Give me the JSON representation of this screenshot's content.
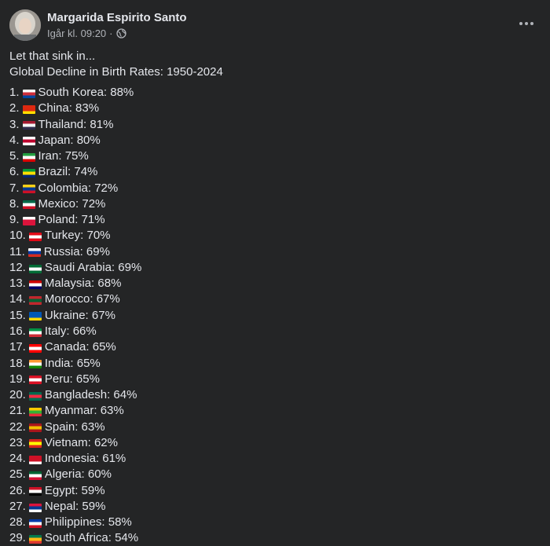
{
  "post": {
    "author": "Margarida Espirito Santo",
    "timestamp": "Igår kl. 09:20",
    "separator": "·",
    "privacy_icon": "globe-icon",
    "more_icon": "more-options-icon",
    "lines": [
      "Let that sink in...",
      "Global Decline in Birth Rates: 1950-2024"
    ]
  },
  "countries": [
    {
      "num": "1.",
      "text": "South Korea: 88%",
      "flag": [
        "#ffffff",
        "#cd2e3a",
        "#0047a0"
      ]
    },
    {
      "num": "2.",
      "text": "China: 83%",
      "flag": [
        "#de2910",
        "#de2910",
        "#ffde00"
      ]
    },
    {
      "num": "3.",
      "text": "Thailand: 81%",
      "flag": [
        "#a51931",
        "#f4f5f8",
        "#2d2a4a"
      ]
    },
    {
      "num": "4.",
      "text": "Japan: 80%",
      "flag": [
        "#ffffff",
        "#bc002d",
        "#ffffff"
      ]
    },
    {
      "num": "5.",
      "text": "Iran: 75%",
      "flag": [
        "#239f40",
        "#ffffff",
        "#da0000"
      ]
    },
    {
      "num": "6.",
      "text": "Brazil: 74%",
      "flag": [
        "#009c3b",
        "#ffdf00",
        "#002776"
      ]
    },
    {
      "num": "7.",
      "text": "Colombia: 72%",
      "flag": [
        "#fcd116",
        "#003893",
        "#ce1126"
      ]
    },
    {
      "num": "8.",
      "text": "Mexico: 72%",
      "flag": [
        "#006847",
        "#ffffff",
        "#ce1126"
      ]
    },
    {
      "num": "9.",
      "text": "Poland: 71%",
      "flag": [
        "#ffffff",
        "#dc143c",
        "#dc143c"
      ]
    },
    {
      "num": "10.",
      "text": "Turkey: 70%",
      "flag": [
        "#e30a17",
        "#ffffff",
        "#e30a17"
      ]
    },
    {
      "num": "11.",
      "text": "Russia: 69%",
      "flag": [
        "#ffffff",
        "#0039a6",
        "#d52b1e"
      ]
    },
    {
      "num": "12.",
      "text": "Saudi Arabia: 69%",
      "flag": [
        "#006c35",
        "#ffffff",
        "#006c35"
      ]
    },
    {
      "num": "13.",
      "text": "Malaysia: 68%",
      "flag": [
        "#cc0001",
        "#ffffff",
        "#010066"
      ]
    },
    {
      "num": "14.",
      "text": "Morocco: 67%",
      "flag": [
        "#c1272d",
        "#006233",
        "#c1272d"
      ]
    },
    {
      "num": "15.",
      "text": "Ukraine: 67%",
      "flag": [
        "#0057b7",
        "#0057b7",
        "#ffd700"
      ]
    },
    {
      "num": "16.",
      "text": "Italy: 66%",
      "flag": [
        "#009246",
        "#ffffff",
        "#ce2b37"
      ]
    },
    {
      "num": "17.",
      "text": "Canada: 65%",
      "flag": [
        "#ff0000",
        "#ffffff",
        "#ff0000"
      ]
    },
    {
      "num": "18.",
      "text": "India: 65%",
      "flag": [
        "#ff9933",
        "#ffffff",
        "#138808"
      ]
    },
    {
      "num": "19.",
      "text": "Peru: 65%",
      "flag": [
        "#d91023",
        "#ffffff",
        "#d91023"
      ]
    },
    {
      "num": "20.",
      "text": "Bangladesh: 64%",
      "flag": [
        "#006a4e",
        "#f42a41",
        "#006a4e"
      ]
    },
    {
      "num": "21.",
      "text": "Myanmar: 63%",
      "flag": [
        "#fecb00",
        "#34b233",
        "#ea2839"
      ]
    },
    {
      "num": "22.",
      "text": "Spain: 63%",
      "flag": [
        "#aa151b",
        "#f1bf00",
        "#aa151b"
      ]
    },
    {
      "num": "23.",
      "text": "Vietnam: 62%",
      "flag": [
        "#da251d",
        "#ffff00",
        "#da251d"
      ]
    },
    {
      "num": "24.",
      "text": "Indonesia: 61%",
      "flag": [
        "#ce1126",
        "#ce1126",
        "#ffffff"
      ]
    },
    {
      "num": "25.",
      "text": "Algeria: 60%",
      "flag": [
        "#006233",
        "#ffffff",
        "#d21034"
      ]
    },
    {
      "num": "26.",
      "text": "Egypt: 59%",
      "flag": [
        "#ce1126",
        "#ffffff",
        "#000000"
      ]
    },
    {
      "num": "27.",
      "text": "Nepal: 59%",
      "flag": [
        "#dc143c",
        "#003893",
        "#ffffff"
      ]
    },
    {
      "num": "28.",
      "text": "Philippines: 58%",
      "flag": [
        "#0038a8",
        "#ffffff",
        "#ce1126"
      ]
    },
    {
      "num": "29.",
      "text": "South Africa: 54%",
      "flag": [
        "#007a4d",
        "#ffb612",
        "#de3831"
      ]
    }
  ],
  "colors": {
    "background": "#242526",
    "primary_text": "#e4e6eb",
    "secondary_text": "#b0b3b8"
  }
}
